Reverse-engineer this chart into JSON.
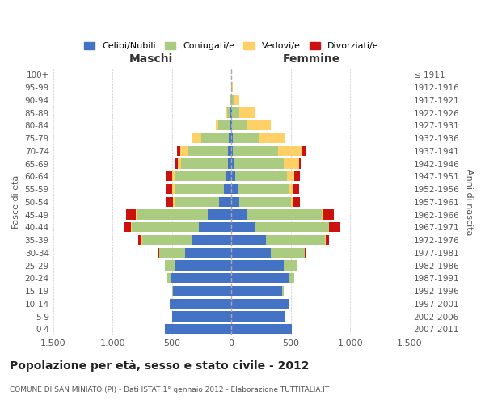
{
  "age_groups": [
    "0-4",
    "5-9",
    "10-14",
    "15-19",
    "20-24",
    "25-29",
    "30-34",
    "35-39",
    "40-44",
    "45-49",
    "50-54",
    "55-59",
    "60-64",
    "65-69",
    "70-74",
    "75-79",
    "80-84",
    "85-89",
    "90-94",
    "95-99",
    "100+"
  ],
  "birth_years": [
    "2007-2011",
    "2002-2006",
    "1997-2001",
    "1992-1996",
    "1987-1991",
    "1982-1986",
    "1977-1981",
    "1972-1976",
    "1967-1971",
    "1962-1966",
    "1957-1961",
    "1952-1956",
    "1947-1951",
    "1942-1946",
    "1937-1941",
    "1932-1936",
    "1927-1931",
    "1922-1926",
    "1917-1921",
    "1912-1916",
    "≤ 1911"
  ],
  "males": {
    "celibi": [
      560,
      500,
      520,
      490,
      510,
      470,
      390,
      330,
      270,
      200,
      100,
      60,
      40,
      30,
      30,
      20,
      10,
      5,
      0,
      0,
      0
    ],
    "coniugati": [
      0,
      0,
      0,
      5,
      30,
      90,
      220,
      420,
      570,
      600,
      380,
      420,
      440,
      390,
      340,
      230,
      100,
      30,
      10,
      0,
      0
    ],
    "vedovi": [
      0,
      0,
      0,
      0,
      0,
      0,
      0,
      5,
      5,
      5,
      10,
      15,
      20,
      30,
      60,
      80,
      20,
      5,
      0,
      0,
      0
    ],
    "divorziati": [
      0,
      0,
      0,
      0,
      0,
      0,
      10,
      30,
      60,
      80,
      60,
      60,
      50,
      30,
      30,
      0,
      0,
      0,
      0,
      0,
      0
    ]
  },
  "females": {
    "nubili": [
      510,
      450,
      490,
      430,
      480,
      440,
      330,
      290,
      200,
      130,
      70,
      50,
      30,
      20,
      15,
      10,
      5,
      5,
      0,
      0,
      0
    ],
    "coniugate": [
      0,
      0,
      0,
      10,
      50,
      110,
      290,
      500,
      620,
      630,
      430,
      440,
      440,
      420,
      380,
      230,
      130,
      60,
      20,
      5,
      0
    ],
    "vedove": [
      0,
      0,
      0,
      0,
      0,
      0,
      0,
      5,
      5,
      10,
      15,
      30,
      60,
      130,
      200,
      210,
      200,
      130,
      50,
      10,
      2
    ],
    "divorziate": [
      0,
      0,
      0,
      0,
      0,
      0,
      10,
      30,
      90,
      90,
      60,
      50,
      50,
      15,
      30,
      0,
      0,
      0,
      0,
      0,
      0
    ]
  },
  "colors": {
    "celibi": "#4472C4",
    "coniugati": "#AACB80",
    "vedovi": "#FFD066",
    "divorziati": "#CC1111"
  },
  "xlim": 1500,
  "title": "Popolazione per età, sesso e stato civile - 2012",
  "subtitle": "COMUNE DI SAN MINIATO (PI) - Dati ISTAT 1° gennaio 2012 - Elaborazione TUTTITALIA.IT",
  "legend_labels": [
    "Celibi/Nubili",
    "Coniugati/e",
    "Vedovi/e",
    "Divorziati/e"
  ],
  "xlabel_left": "Maschi",
  "xlabel_right": "Femmine",
  "ylabel_left": "Fasce di età",
  "ylabel_right": "Anni di nascita"
}
